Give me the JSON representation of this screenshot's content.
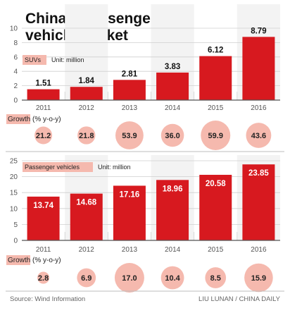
{
  "title": "China's passenger vehicle market",
  "title_lines": [
    "China’s passenger",
    "vehicle market"
  ],
  "source": "Source: Wind Information",
  "credit": "LIU LUNAN / CHINA DAILY",
  "colors": {
    "bar": "#d7191f",
    "bubble": "#f5b9ae",
    "grid": "#cfcfcf",
    "axis": "#555555",
    "label_box": "#f5b9ae"
  },
  "chart_data": [
    {
      "type": "bar",
      "series_label": "SUVs",
      "unit_label": "Unit: million",
      "categories": [
        "2011",
        "2012",
        "2013",
        "2014",
        "2015",
        "2016"
      ],
      "values": [
        1.51,
        1.84,
        2.81,
        3.83,
        6.12,
        8.79
      ],
      "value_labels": [
        "1.51",
        "1.84",
        "2.81",
        "3.83",
        "6.12",
        "8.79"
      ],
      "ylim": [
        0,
        10
      ],
      "yticks": [
        "0",
        "2",
        "4",
        "6",
        "8",
        "10"
      ],
      "grid": true,
      "growth_label": "Growth (% y-o-y)",
      "growth": [
        21.2,
        21.8,
        53.9,
        36.0,
        59.9,
        43.6
      ],
      "growth_labels": [
        "21.2",
        "21.8",
        "53.9",
        "36.0",
        "59.9",
        "43.6"
      ]
    },
    {
      "type": "bar",
      "series_label": "Passenger vehicles",
      "unit_label": "Unit: million",
      "categories": [
        "2011",
        "2012",
        "2013",
        "2014",
        "2015",
        "2016"
      ],
      "values": [
        13.74,
        14.68,
        17.16,
        18.96,
        20.58,
        23.85
      ],
      "value_labels": [
        "13.74",
        "14.68",
        "17.16",
        "18.96",
        "20.58",
        "23.85"
      ],
      "ylim": [
        0,
        25
      ],
      "yticks": [
        "0",
        "5",
        "10",
        "15",
        "20",
        "25"
      ],
      "grid": true,
      "growth_label": "Growth (% y-o-y)",
      "growth": [
        2.8,
        6.9,
        17.0,
        10.4,
        8.5,
        15.9
      ],
      "growth_labels": [
        "2.8",
        "6.9",
        "17.0",
        "10.4",
        "8.5",
        "15.9"
      ]
    }
  ]
}
